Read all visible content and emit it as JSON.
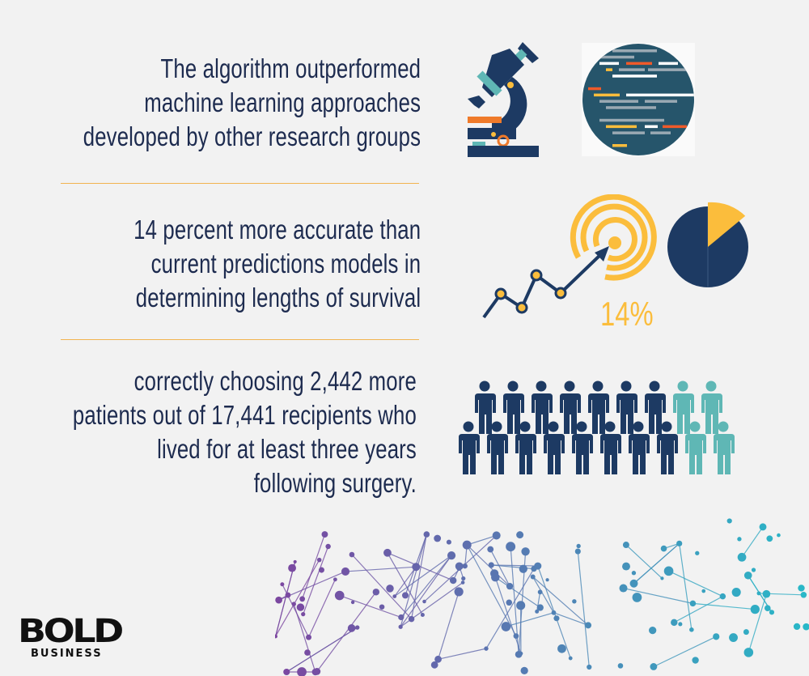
{
  "facts": [
    {
      "lines": [
        "The algorithm outperformed",
        "machine learning approaches",
        "developed by other research groups"
      ]
    },
    {
      "lines": [
        "14 percent more accurate than",
        "current predictions models in",
        "determining lengths of survival"
      ]
    },
    {
      "lines": [
        "correctly choosing 2,442 more",
        "patients out of 17,441 recipients who",
        "lived for at least three years",
        "following surgery."
      ]
    }
  ],
  "stat": {
    "label": "14%",
    "percent": 14
  },
  "icons": [
    "microscope-icon",
    "code-circle-icon",
    "trend-target-icon",
    "pie-chart-icon",
    "people-icon"
  ],
  "colors": {
    "navy": "#1d3a63",
    "yellow": "#fbbd3c",
    "teal": "#5fb7b5",
    "orange": "#ef7a2a",
    "text": "#1d2b4f",
    "divider": "#f2b450"
  },
  "logo": {
    "word": "BOLD",
    "sub": "BUSINESS"
  }
}
